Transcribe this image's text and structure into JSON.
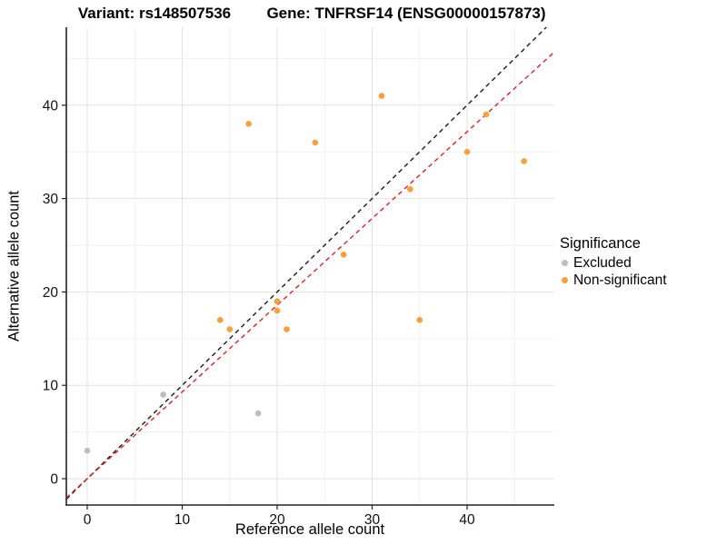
{
  "chart_data": {
    "type": "scatter",
    "title_variant": "Variant: rs148507536",
    "title_gene": "Gene: TNFRSF14 (ENSG00000157873)",
    "xlabel": "Reference allele count",
    "ylabel": "Alternative allele count",
    "x_ticks": [
      0,
      10,
      20,
      30,
      40
    ],
    "y_ticks": [
      0,
      10,
      20,
      30,
      40
    ],
    "xlim": [
      -2.2,
      49.2
    ],
    "ylim": [
      -2.8,
      48.3
    ],
    "grid": "major-and-minor",
    "legend": {
      "title": "Significance",
      "position": "right",
      "entries": [
        {
          "label": "Excluded",
          "color": "#BDBDBD"
        },
        {
          "label": "Non-significant",
          "color": "#F9A03C"
        }
      ]
    },
    "series": [
      {
        "name": "Excluded",
        "color": "#BDBDBD",
        "points": [
          [
            0,
            3
          ],
          [
            8,
            9
          ],
          [
            18,
            7
          ]
        ]
      },
      {
        "name": "Non-significant",
        "color": "#F9A03C",
        "points": [
          [
            14,
            17
          ],
          [
            15,
            16
          ],
          [
            17,
            38
          ],
          [
            20,
            18
          ],
          [
            20,
            19
          ],
          [
            21,
            16
          ],
          [
            24,
            36
          ],
          [
            27,
            24
          ],
          [
            31,
            41
          ],
          [
            34,
            31
          ],
          [
            35,
            17
          ],
          [
            40,
            35
          ],
          [
            42,
            39
          ],
          [
            46,
            34
          ]
        ]
      }
    ],
    "lines": [
      {
        "name": "identity-line",
        "color": "#1A1A1A",
        "slope": 1.0,
        "intercept": 0,
        "dashed": true
      },
      {
        "name": "regression-line",
        "color": "#E02020",
        "slope": 0.929,
        "intercept": 0,
        "dashed": true
      }
    ]
  }
}
